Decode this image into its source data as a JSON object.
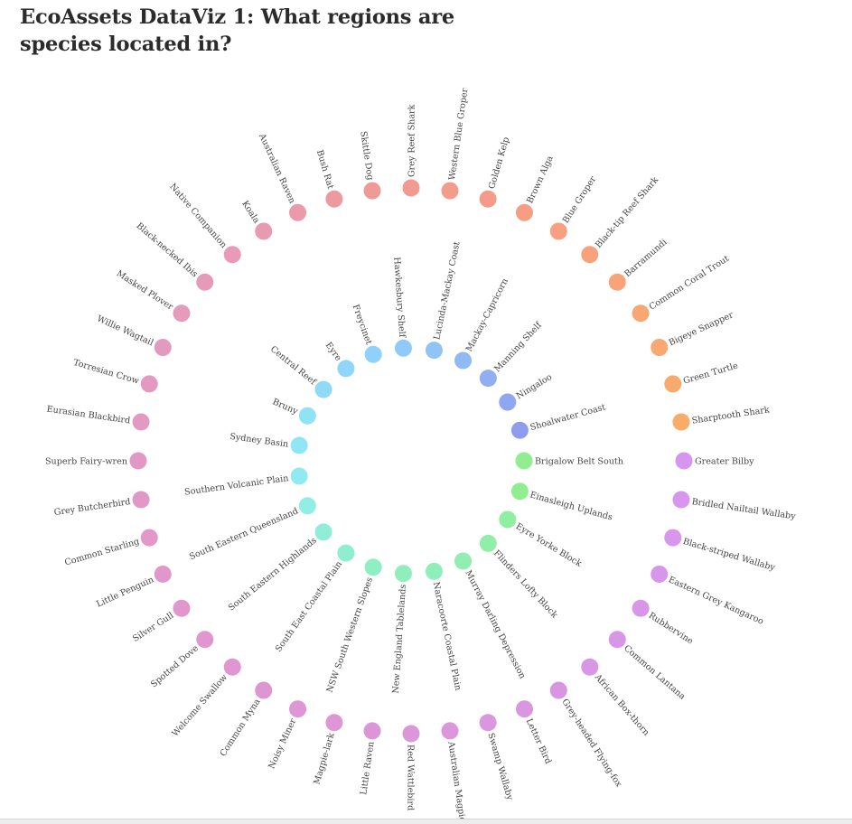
{
  "title": "EcoAssets DataViz 1: What regions are species located in?",
  "colors": {
    "background": "#ffffff",
    "title_text": "#2b2b2b",
    "label_text": "#444444"
  },
  "chart_data": {
    "type": "radial-network",
    "inner_ring": {
      "name": "regions",
      "nodes": [
        {
          "label": "Brigalow Belt South",
          "color": "#90ee90"
        },
        {
          "label": "Einasleigh Uplands",
          "color": "#90ee90"
        },
        {
          "label": "Eyre Yorke Block",
          "color": "#90eea0"
        },
        {
          "label": "Flinders Lofty Block",
          "color": "#90eea8"
        },
        {
          "label": "Murray Darling Depression",
          "color": "#90eeb0"
        },
        {
          "label": "Naracoorte Coastal Plain",
          "color": "#90eeb8"
        },
        {
          "label": "New England Tablelands",
          "color": "#90eebc"
        },
        {
          "label": "NSW South Western Slopes",
          "color": "#90eec4"
        },
        {
          "label": "South East Coastal Plain",
          "color": "#90eed0"
        },
        {
          "label": "South Eastern Highlands",
          "color": "#90eed8"
        },
        {
          "label": "South Eastern Queensland",
          "color": "#90eee4"
        },
        {
          "label": "Southern Volcanic Plain",
          "color": "#90eaf0"
        },
        {
          "label": "Sydney Basin",
          "color": "#90e6f4"
        },
        {
          "label": "Bruny",
          "color": "#90e2f6"
        },
        {
          "label": "Central Reef",
          "color": "#90daf8"
        },
        {
          "label": "Eyre",
          "color": "#90d6fa"
        },
        {
          "label": "Freycinet",
          "color": "#90d0fa"
        },
        {
          "label": "Hawkesbury Shelf",
          "color": "#90caf8"
        },
        {
          "label": "Lucinda-Mackay Coast",
          "color": "#90c4f6"
        },
        {
          "label": "Mackay-Capricorn",
          "color": "#90baf4"
        },
        {
          "label": "Manning Shelf",
          "color": "#90aef2"
        },
        {
          "label": "Ningaloo",
          "color": "#90a6f0"
        },
        {
          "label": "Shoalwater Coast",
          "color": "#909cee"
        }
      ]
    },
    "outer_ring": {
      "name": "species",
      "nodes": [
        {
          "label": "Greater Bilby",
          "color": "#d696f0"
        },
        {
          "label": "Bridled Nailtail Wallaby",
          "color": "#d896ee"
        },
        {
          "label": "Black-striped Wallaby",
          "color": "#d896ec"
        },
        {
          "label": "Eastern Grey Kangaroo",
          "color": "#d896ea"
        },
        {
          "label": "Rubbervine",
          "color": "#d896e8"
        },
        {
          "label": "Common Lantana",
          "color": "#d896e6"
        },
        {
          "label": "African Box-thorn",
          "color": "#d896e4"
        },
        {
          "label": "Grey-headed Flying-fox",
          "color": "#d896e2"
        },
        {
          "label": "Letter Bird",
          "color": "#da96e0"
        },
        {
          "label": "Swamp Wallaby",
          "color": "#da96de"
        },
        {
          "label": "Australian Magpie",
          "color": "#dc96dc"
        },
        {
          "label": "Red Wattlebird",
          "color": "#dc96da"
        },
        {
          "label": "Little Raven",
          "color": "#dc96d8"
        },
        {
          "label": "Magpie-lark",
          "color": "#de96d6"
        },
        {
          "label": "Noisy Miner",
          "color": "#de96d4"
        },
        {
          "label": "Common Myna",
          "color": "#de96d2"
        },
        {
          "label": "Welcome Swallow",
          "color": "#e096d0"
        },
        {
          "label": "Spotted Dove",
          "color": "#e096ce"
        },
        {
          "label": "Silver Gull",
          "color": "#e098cc"
        },
        {
          "label": "Little Penguin",
          "color": "#e098ca"
        },
        {
          "label": "Common Starling",
          "color": "#e298c8"
        },
        {
          "label": "Grey Butcherbird",
          "color": "#e298c6"
        },
        {
          "label": "Superb Fairy-wren",
          "color": "#e298c4"
        },
        {
          "label": "Eurasian Blackbird",
          "color": "#e29ac2"
        },
        {
          "label": "Torresian Crow",
          "color": "#e49ac0"
        },
        {
          "label": "Willie Wagtail",
          "color": "#e49abe"
        },
        {
          "label": "Masked Plover",
          "color": "#e69abc"
        },
        {
          "label": "Black-necked Ibis",
          "color": "#e69aba"
        },
        {
          "label": "Native Companion",
          "color": "#e89ab6"
        },
        {
          "label": "Koala",
          "color": "#e89ab0"
        },
        {
          "label": "Australian Raven",
          "color": "#ea9aa8"
        },
        {
          "label": "Bush Rat",
          "color": "#ec9aa0"
        },
        {
          "label": "Skittle Dog",
          "color": "#ee9a96"
        },
        {
          "label": "Grey Reef Shark",
          "color": "#f09a90"
        },
        {
          "label": "Western Blue Groper",
          "color": "#f29c8c"
        },
        {
          "label": "Golden Kelp",
          "color": "#f49c88"
        },
        {
          "label": "Brown Alga",
          "color": "#f69e84"
        },
        {
          "label": "Blue Groper",
          "color": "#f8a080"
        },
        {
          "label": "Black-tip Reef Shark",
          "color": "#f8a27c"
        },
        {
          "label": "Barramundi",
          "color": "#f8a478"
        },
        {
          "label": "Common Coral Trout",
          "color": "#f8a674"
        },
        {
          "label": "Bigeye Snapper",
          "color": "#f8a870"
        },
        {
          "label": "Green Turtle",
          "color": "#f8aa6c"
        },
        {
          "label": "Sharptooth Shark",
          "color": "#f8ac68"
        }
      ]
    }
  }
}
